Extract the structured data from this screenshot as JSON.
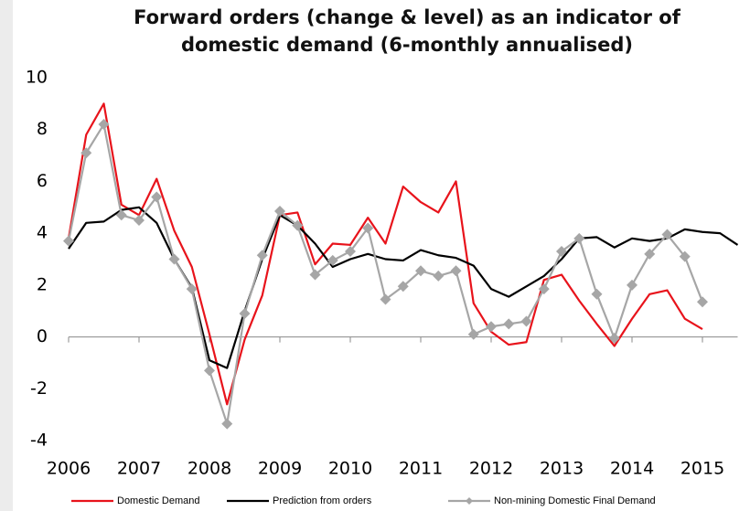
{
  "chart_data": {
    "type": "line",
    "title": [
      "Forward orders (change & level) as an indicator of",
      "domestic demand (6-monthly annualised)"
    ],
    "x": [
      2006,
      2006.25,
      2006.5,
      2006.75,
      2007,
      2007.25,
      2007.5,
      2007.75,
      2008,
      2008.25,
      2008.5,
      2008.75,
      2009,
      2009.25,
      2009.5,
      2009.75,
      2010,
      2010.25,
      2010.5,
      2010.75,
      2011,
      2011.25,
      2011.5,
      2011.75,
      2012,
      2012.25,
      2012.5,
      2012.75,
      2013,
      2013.25,
      2013.5,
      2013.75,
      2014,
      2014.25,
      2014.5,
      2014.75,
      2015,
      2015.25,
      2015.5
    ],
    "series": [
      {
        "name": "Domestic Demand",
        "color": "#e8131b",
        "marker": false,
        "values": [
          3.8,
          7.8,
          9.0,
          5.1,
          4.7,
          6.1,
          4.1,
          2.7,
          0.1,
          -2.6,
          -0.1,
          1.6,
          4.7,
          4.8,
          2.8,
          3.6,
          3.55,
          4.6,
          3.6,
          5.8,
          5.2,
          4.8,
          6.0,
          1.3,
          0.2,
          -0.3,
          -0.2,
          2.2,
          2.4,
          1.4,
          0.5,
          -0.35,
          0.7,
          1.65,
          1.8,
          0.7,
          0.3,
          null,
          null
        ]
      },
      {
        "name": "Prediction from orders",
        "color": "#000000",
        "marker": false,
        "values": [
          3.4,
          4.4,
          4.45,
          4.9,
          5.0,
          4.4,
          3.0,
          1.9,
          -0.9,
          -1.2,
          1.0,
          3.0,
          4.7,
          4.3,
          3.6,
          2.7,
          3.0,
          3.2,
          3.0,
          2.95,
          3.35,
          3.15,
          3.05,
          2.75,
          1.85,
          1.55,
          1.95,
          2.35,
          3.0,
          3.8,
          3.85,
          3.45,
          3.8,
          3.7,
          3.8,
          4.15,
          4.05,
          4.0,
          3.55
        ]
      },
      {
        "name": "Non-mining Domestic Final Demand",
        "color": "#a6a6a6",
        "marker": true,
        "values": [
          3.7,
          7.1,
          8.2,
          4.7,
          4.5,
          5.4,
          3.0,
          1.85,
          -1.3,
          -3.35,
          0.9,
          3.15,
          4.85,
          4.3,
          2.4,
          2.95,
          3.3,
          4.2,
          1.45,
          1.95,
          2.55,
          2.35,
          2.55,
          0.1,
          0.4,
          0.5,
          0.6,
          1.85,
          3.3,
          3.8,
          1.65,
          -0.05,
          2.0,
          3.2,
          3.95,
          3.1,
          1.35,
          null,
          null
        ]
      }
    ],
    "xlim": [
      2006,
      2015.5
    ],
    "xticks": [
      2006,
      2007,
      2008,
      2009,
      2010,
      2011,
      2012,
      2013,
      2014,
      2015
    ],
    "ylim": [
      -4,
      10
    ],
    "yticks": [
      -4,
      -2,
      0,
      2,
      4,
      6,
      8,
      10
    ],
    "grid": false
  }
}
